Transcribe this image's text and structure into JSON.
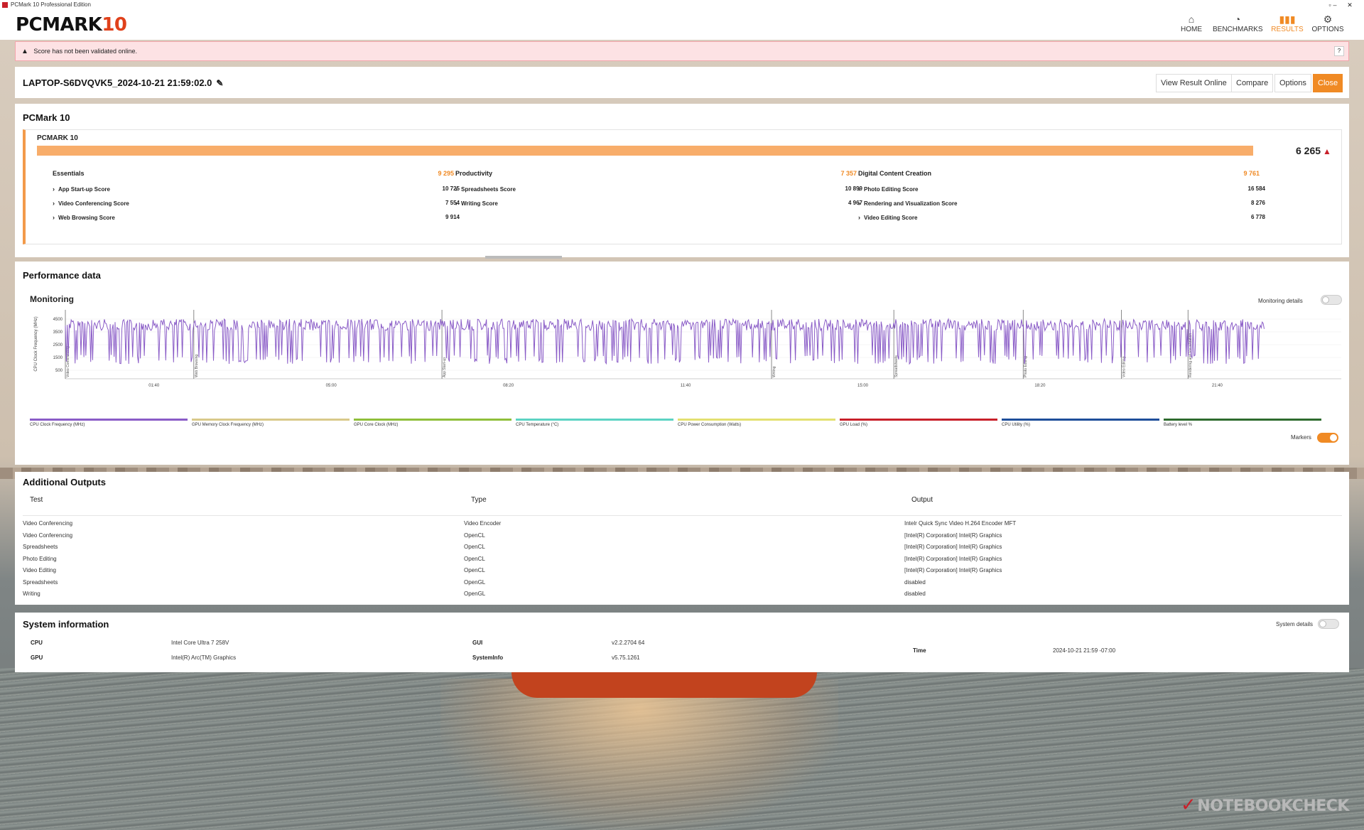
{
  "window": {
    "title": "PCMark 10 Professional Edition"
  },
  "header": {
    "logo_text": "PCMARK",
    "logo_num": "10",
    "nav": [
      {
        "label": "HOME",
        "icon": "home-icon"
      },
      {
        "label": "BENCHMARKS",
        "icon": "benchmarks-icon"
      },
      {
        "label": "RESULTS",
        "icon": "results-icon",
        "active": true
      },
      {
        "label": "OPTIONS",
        "icon": "gear-icon"
      }
    ]
  },
  "alert": {
    "text": "Score has not been validated online.",
    "help": "?"
  },
  "result": {
    "name": "LAPTOP-S6DVQVK5_2024-10-21 21:59:02.0",
    "buttons": {
      "view_online": "View Result Online",
      "compare": "Compare",
      "options": "Options",
      "close": "Close"
    }
  },
  "score": {
    "section_title": "PCMark 10",
    "name": "PCMARK 10",
    "total": "6 265",
    "groups": [
      {
        "name": "Essentials",
        "value": "9 295",
        "subs": [
          {
            "name": "App Start-up Score",
            "value": "10 725"
          },
          {
            "name": "Video Conferencing Score",
            "value": "7 554"
          },
          {
            "name": "Web Browsing Score",
            "value": "9 914"
          }
        ]
      },
      {
        "name": "Productivity",
        "value": "7 357",
        "subs": [
          {
            "name": "Spreadsheets Score",
            "value": "10 899"
          },
          {
            "name": "Writing Score",
            "value": "4 967"
          }
        ]
      },
      {
        "name": "Digital Content Creation",
        "value": "9 761",
        "subs": [
          {
            "name": "Photo Editing Score",
            "value": "16 584"
          },
          {
            "name": "Rendering and Visualization Score",
            "value": "8 276"
          },
          {
            "name": "Video Editing Score",
            "value": "6 778"
          }
        ]
      }
    ]
  },
  "performance": {
    "section_title": "Performance data",
    "monitoring_title": "Monitoring",
    "monitoring_details_label": "Monitoring details",
    "markers_label": "Markers",
    "legend": [
      {
        "name": "CPU Clock Frequency (MHz)",
        "color": "#8a5cc7"
      },
      {
        "name": "GPU Memory Clock Frequency (MHz)",
        "color": "#d9c98a"
      },
      {
        "name": "GPU Core Clock (MHz)",
        "color": "#8fbf3a"
      },
      {
        "name": "CPU Temperature (°C)",
        "color": "#5cd3c3"
      },
      {
        "name": "CPU Power Consumption (Watts)",
        "color": "#e3e070"
      },
      {
        "name": "GPU Load (%)",
        "color": "#c8202a"
      },
      {
        "name": "CPU Utility (%)",
        "color": "#1f4e9a"
      },
      {
        "name": "Battery level %",
        "color": "#2e6b2e"
      }
    ]
  },
  "chart_data": {
    "type": "line",
    "ylabel": "CPU Clock Frequency (MHz)",
    "y_ticks": [
      "4500",
      "3500",
      "2500",
      "1500",
      "500"
    ],
    "ylim": [
      0,
      5000
    ],
    "x_ticks": [
      "01:40",
      "05:00",
      "08:20",
      "11:40",
      "15:00",
      "18:20",
      "21:40"
    ],
    "xlim_seconds": [
      0,
      1440
    ],
    "markers": [
      {
        "label": "Video Conferencing",
        "t": 0
      },
      {
        "label": "Web Browsing",
        "t": 145
      },
      {
        "label": "App Start-up",
        "t": 425
      },
      {
        "label": "Writing",
        "t": 797
      },
      {
        "label": "Spreadsheets",
        "t": 935
      },
      {
        "label": "Photo Editing",
        "t": 1081
      },
      {
        "label": "Video Editing",
        "t": 1192
      },
      {
        "label": "Rendering and Visualization",
        "t": 1267
      }
    ],
    "series": [
      {
        "name": "CPU Clock Frequency (MHz)",
        "color": "#8a5cc7",
        "end_t": 1353,
        "high": 4500,
        "low": 1000
      }
    ]
  },
  "additional_outputs": {
    "section_title": "Additional Outputs",
    "columns": [
      "Test",
      "Type",
      "Output"
    ],
    "rows": [
      [
        "Video Conferencing",
        "Video Encoder",
        "Intelr Quick Sync Video H.264 Encoder MFT"
      ],
      [
        "Video Conferencing",
        "OpenCL",
        "[Intel(R) Corporation] Intel(R) Graphics"
      ],
      [
        "Spreadsheets",
        "OpenCL",
        "[Intel(R) Corporation] Intel(R) Graphics"
      ],
      [
        "Photo Editing",
        "OpenCL",
        "[Intel(R) Corporation] Intel(R) Graphics"
      ],
      [
        "Video Editing",
        "OpenCL",
        "[Intel(R) Corporation] Intel(R) Graphics"
      ],
      [
        "Spreadsheets",
        "OpenGL",
        "disabled"
      ],
      [
        "Writing",
        "OpenGL",
        "disabled"
      ]
    ]
  },
  "system_info": {
    "section_title": "System information",
    "details_label": "System details",
    "items": [
      {
        "key": "CPU",
        "value": "Intel Core Ultra 7 258V"
      },
      {
        "key": "GPU",
        "value": "Intel(R) Arc(TM) Graphics"
      },
      {
        "key": "GUI",
        "value": "v2.2.2704 64"
      },
      {
        "key": "SystemInfo",
        "value": "v5.75.1261"
      },
      {
        "key": "Time",
        "value": "2024-10-21 21:59 -07:00"
      }
    ]
  },
  "watermark": "NOTEBOOKCHECK"
}
